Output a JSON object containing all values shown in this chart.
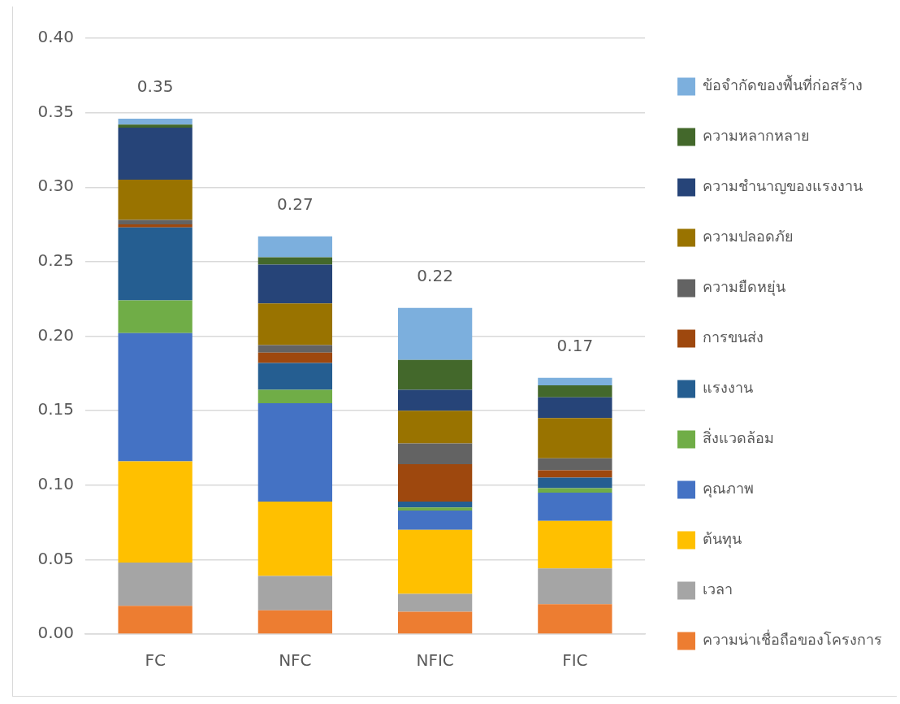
{
  "chart_data": {
    "type": "bar",
    "stacked": true,
    "categories": [
      "FC",
      "NFC",
      "NFIC",
      "FIC"
    ],
    "series": [
      {
        "name": "ความน่าเชื่อถือของโครงการ",
        "color": "#ed7d31",
        "values": [
          0.019,
          0.016,
          0.015,
          0.02
        ]
      },
      {
        "name": "เวลา",
        "color": "#a5a5a5",
        "values": [
          0.029,
          0.023,
          0.012,
          0.024
        ]
      },
      {
        "name": "ต้นทุน",
        "color": "#ffc000",
        "values": [
          0.068,
          0.05,
          0.043,
          0.032
        ]
      },
      {
        "name": "คุณภาพ",
        "color": "#4472c4",
        "values": [
          0.086,
          0.066,
          0.013,
          0.019
        ]
      },
      {
        "name": "สิ่งแวดล้อม",
        "color": "#70ad47",
        "values": [
          0.022,
          0.009,
          0.002,
          0.003
        ]
      },
      {
        "name": "แรงงาน",
        "color": "#255e91",
        "values": [
          0.049,
          0.018,
          0.004,
          0.007
        ]
      },
      {
        "name": "การขนส่ง",
        "color": "#9e480e",
        "values": [
          0.002,
          0.007,
          0.025,
          0.005
        ]
      },
      {
        "name": "ความยืดหยุ่น",
        "color": "#636363",
        "values": [
          0.003,
          0.005,
          0.014,
          0.008
        ]
      },
      {
        "name": "ความปลอดภัย",
        "color": "#997300",
        "values": [
          0.027,
          0.028,
          0.022,
          0.027
        ]
      },
      {
        "name": "ความชำนาญของแรงงาน",
        "color": "#264478",
        "values": [
          0.035,
          0.026,
          0.014,
          0.014
        ]
      },
      {
        "name": "ความหลากหลาย",
        "color": "#43682b",
        "values": [
          0.002,
          0.005,
          0.02,
          0.008
        ]
      },
      {
        "name": "ข้อจำกัดของพื้นที่ก่อสร้าง",
        "color": "#7cafdd",
        "values": [
          0.004,
          0.014,
          0.035,
          0.005
        ]
      }
    ],
    "totals": [
      "0.35",
      "0.27",
      "0.22",
      "0.17"
    ],
    "ylim": [
      0,
      0.4
    ],
    "yticks": [
      {
        "value": 0,
        "label": "0.00"
      },
      0.05,
      {
        "value": 0.1,
        "label": "0.10"
      },
      0.15,
      {
        "value": 0.2,
        "label": "0.20"
      },
      0.25,
      {
        "value": 0.3,
        "label": "0.30"
      },
      0.35,
      {
        "value": 0.4,
        "label": "0.40"
      }
    ],
    "grid": "y",
    "legend": "right"
  }
}
